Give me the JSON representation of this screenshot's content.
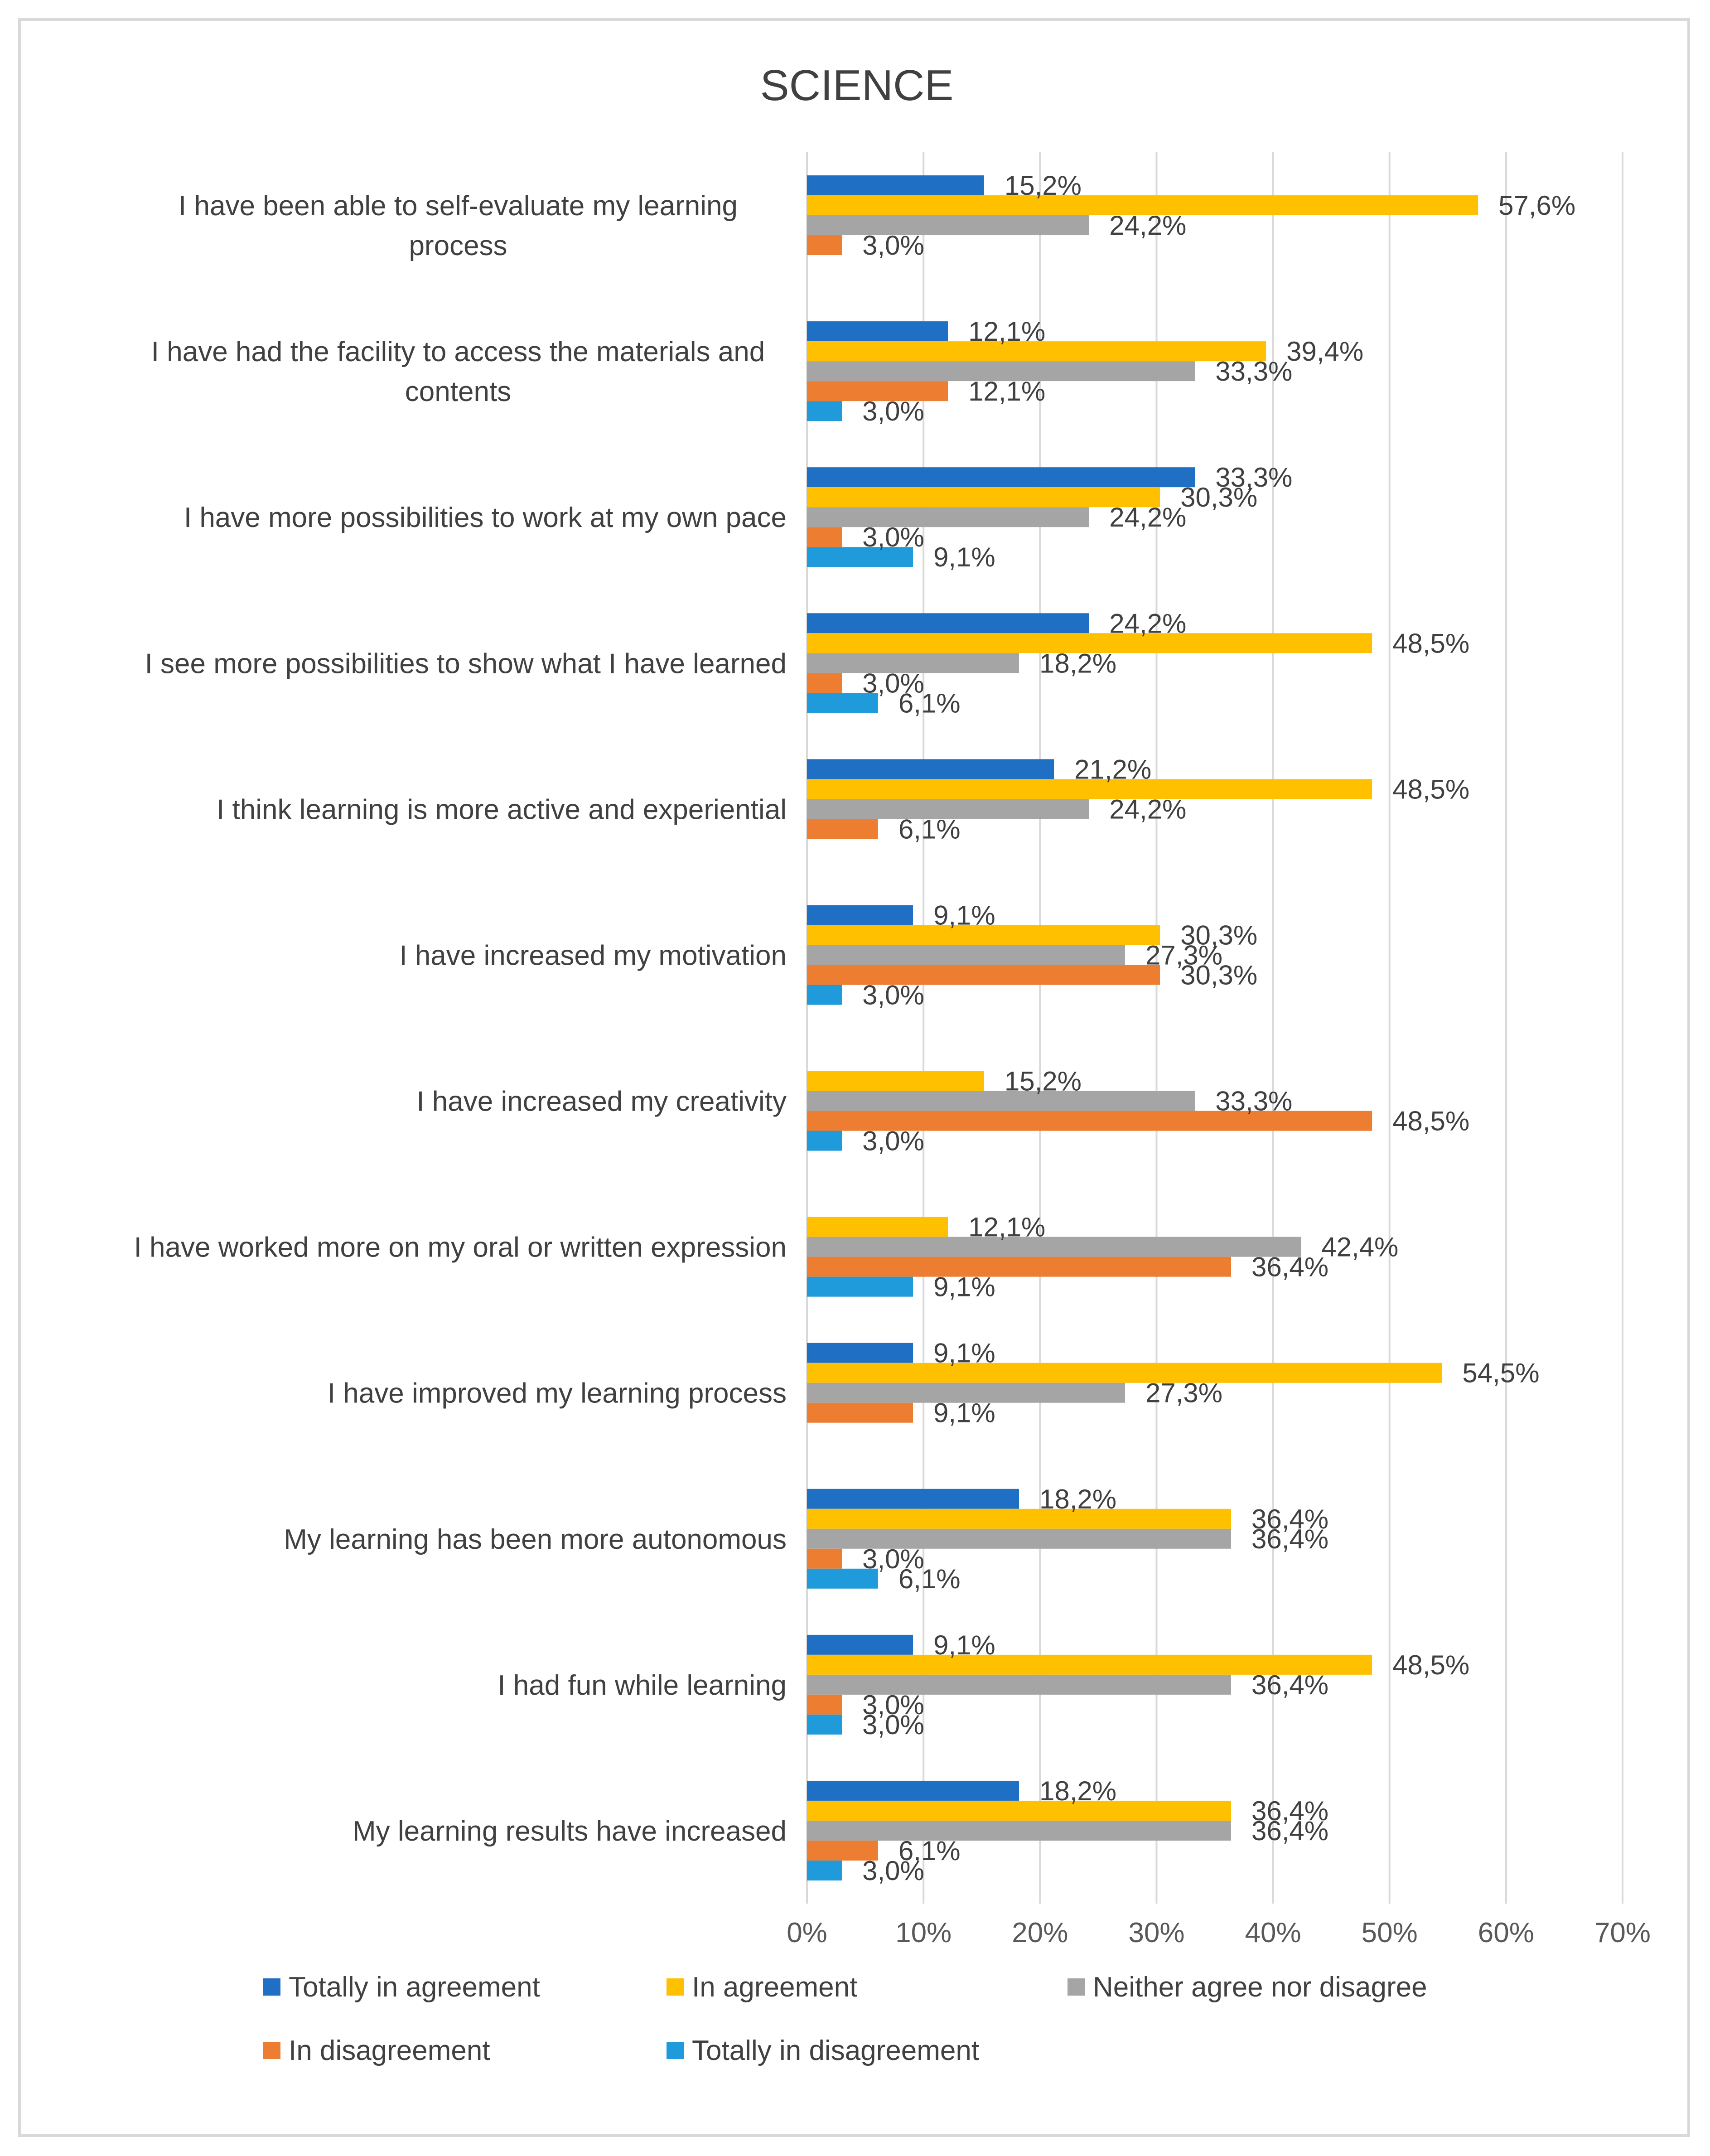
{
  "chart_data": {
    "type": "bar",
    "orientation": "horizontal",
    "title": "SCIENCE",
    "xlabel": "",
    "ylabel": "",
    "xlim": [
      0,
      70
    ],
    "x_ticks": [
      "0%",
      "10%",
      "20%",
      "30%",
      "40%",
      "50%",
      "60%",
      "70%"
    ],
    "grid": true,
    "legend_position": "bottom",
    "categories": [
      "I have been able to self-evaluate my learning process",
      "I have had the facility to access the materials and contents",
      "I have more possibilities to work at my own pace",
      "I see more possibilities to show what I have learned",
      "I think learning is more active and experiential",
      "I have increased my motivation",
      "I have increased my creativity",
      "I have worked more on my oral or written expression",
      "I have improved my learning process",
      "My learning has been more autonomous",
      "I had fun while learning",
      "My learning results have increased"
    ],
    "series": [
      {
        "name": "Totally in agreement",
        "color": "#1F6FC5",
        "values": [
          15.2,
          12.1,
          33.3,
          24.2,
          21.2,
          9.1,
          null,
          null,
          9.1,
          18.2,
          9.1,
          18.2
        ],
        "labels": [
          "15,2%",
          "12,1%",
          "33,3%",
          "24,2%",
          "21,2%",
          "9,1%",
          null,
          null,
          "9,1%",
          "18,2%",
          "9,1%",
          "18,2%"
        ]
      },
      {
        "name": "In agreement",
        "color": "#FFC000",
        "values": [
          57.6,
          39.4,
          30.3,
          48.5,
          48.5,
          30.3,
          15.2,
          12.1,
          54.5,
          36.4,
          48.5,
          36.4
        ],
        "labels": [
          "57,6%",
          "39,4%",
          "30,3%",
          "48,5%",
          "48,5%",
          "30,3%",
          "15,2%",
          "12,1%",
          "54,5%",
          "36,4%",
          "48,5%",
          "36,4%"
        ]
      },
      {
        "name": "Neither agree nor disagree",
        "color": "#A5A5A5",
        "values": [
          24.2,
          33.3,
          24.2,
          18.2,
          24.2,
          27.3,
          33.3,
          42.4,
          27.3,
          36.4,
          36.4,
          36.4
        ],
        "labels": [
          "24,2%",
          "33,3%",
          "24,2%",
          "18,2%",
          "24,2%",
          "27,3%",
          "33,3%",
          "42,4%",
          "27,3%",
          "36,4%",
          "36,4%",
          "36,4%"
        ]
      },
      {
        "name": "In disagreement",
        "color": "#ED7D31",
        "values": [
          3.0,
          12.1,
          3.0,
          3.0,
          6.1,
          30.3,
          48.5,
          36.4,
          9.1,
          3.0,
          3.0,
          6.1
        ],
        "labels": [
          "3,0%",
          "12,1%",
          "3,0%",
          "3,0%",
          "6,1%",
          "30,3%",
          "48,5%",
          "36,4%",
          "9,1%",
          "3,0%",
          "3,0%",
          "6,1%"
        ]
      },
      {
        "name": "Totally in disagreement",
        "color": "#1F9BDB",
        "values": [
          null,
          3.0,
          9.1,
          6.1,
          null,
          3.0,
          3.0,
          9.1,
          null,
          6.1,
          3.0,
          3.0
        ],
        "labels": [
          null,
          "3,0%",
          "9,1%",
          "6,1%",
          null,
          "3,0%",
          "3,0%",
          "9,1%",
          null,
          "6,1%",
          "3,0%",
          "3,0%"
        ]
      }
    ]
  },
  "colors": {
    "gridline": "#d9d9d9",
    "axis_text": "#595959",
    "label_text": "#404040"
  }
}
